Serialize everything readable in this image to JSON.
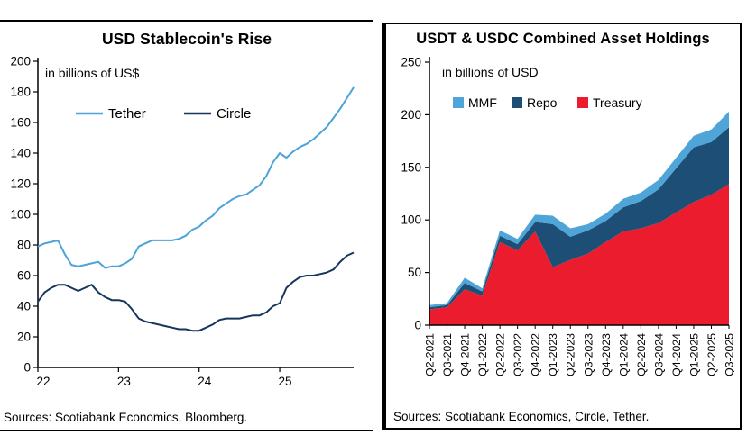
{
  "chart_data": [
    {
      "type": "line",
      "title": "USD Stablecoin's Rise",
      "subtitle": "in billions of US$",
      "source": "Sources: Scotiabank Economics, Bloomberg.",
      "ylim": [
        0,
        200
      ],
      "y_tick_step": 20,
      "x_range": [
        2022,
        2025.917
      ],
      "x_ticks": [
        {
          "value": 2022,
          "label": "22"
        },
        {
          "value": 2023,
          "label": "23"
        },
        {
          "value": 2024,
          "label": "24"
        },
        {
          "value": 2025,
          "label": "25"
        }
      ],
      "legend_position": "top-inside",
      "grid": false,
      "series": [
        {
          "name": "Tether",
          "color": "#4ba3d9",
          "values": [
            79,
            81,
            82,
            83,
            74,
            67,
            66,
            67,
            68,
            69,
            65,
            66,
            66,
            68,
            71,
            79,
            81,
            83,
            83,
            83,
            83,
            84,
            86,
            90,
            92,
            96,
            99,
            104,
            107,
            110,
            112,
            113,
            116,
            119,
            125,
            134,
            140,
            137,
            141,
            144,
            146,
            149,
            153,
            157,
            163,
            169,
            176,
            183
          ]
        },
        {
          "name": "Circle",
          "color": "#16365d",
          "values": [
            43,
            49,
            52,
            54,
            54,
            52,
            50,
            52,
            54,
            49,
            46,
            44,
            44,
            43,
            38,
            32,
            30,
            29,
            28,
            27,
            26,
            25,
            25,
            24,
            24,
            26,
            28,
            31,
            32,
            32,
            32,
            33,
            34,
            34,
            36,
            40,
            42,
            52,
            56,
            59,
            60,
            60,
            61,
            62,
            64,
            69,
            73,
            75
          ]
        }
      ]
    },
    {
      "type": "area",
      "title": "USDT & USDC Combined Asset Holdings",
      "subtitle": "in billions of USD",
      "source": "Sources: Scotiabank Economics, Circle, Tether.",
      "ylim": [
        0,
        250
      ],
      "y_tick_step": 50,
      "grid": false,
      "legend_position": "top-inside",
      "categories": [
        "Q2-2021",
        "Q3-2021",
        "Q4-2021",
        "Q1-2022",
        "Q2-2022",
        "Q3-2022",
        "Q4-2022",
        "Q1-2023",
        "Q2-2023",
        "Q3-2023",
        "Q4-2023",
        "Q1-2024",
        "Q2-2024",
        "Q3-2024",
        "Q4-2024",
        "Q1-2025",
        "Q2-2025",
        "Q3-2025"
      ],
      "stack_order": [
        "Treasury",
        "Repo",
        "MMF"
      ],
      "series": [
        {
          "name": "MMF",
          "color": "#4fa5d8",
          "values": [
            2,
            2,
            5,
            3,
            5,
            5,
            7,
            8,
            8,
            6,
            7,
            8,
            8,
            9,
            10,
            11,
            12,
            15
          ]
        },
        {
          "name": "Repo",
          "color": "#1d4f76",
          "values": [
            2,
            2,
            6,
            4,
            6,
            6,
            9,
            41,
            22,
            22,
            20,
            23,
            26,
            32,
            42,
            52,
            50,
            54
          ]
        },
        {
          "name": "Treasury",
          "color": "#ea1c2d",
          "values": [
            15,
            17,
            34,
            28,
            79,
            71,
            89,
            55,
            62,
            68,
            79,
            89,
            92,
            97,
            107,
            117,
            124,
            134
          ]
        }
      ]
    }
  ]
}
